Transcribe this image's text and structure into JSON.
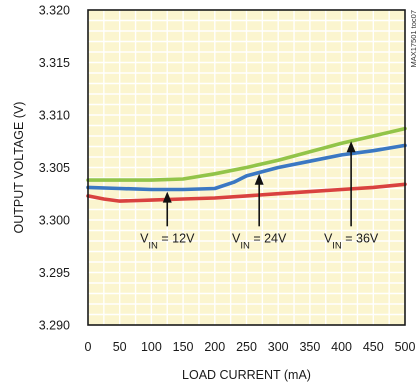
{
  "chart_data": {
    "type": "line",
    "xlabel": "LOAD CURRENT (mA)",
    "ylabel": "OUTPUT VOLTAGE (V)",
    "side_note": "MAX17501 toc07",
    "xlim": [
      0,
      500
    ],
    "ylim": [
      3.29,
      3.32
    ],
    "x_ticks": [
      "0",
      "50",
      "100",
      "150",
      "200",
      "250",
      "300",
      "350",
      "400",
      "450",
      "500"
    ],
    "y_ticks": [
      "3.320",
      "3.315",
      "3.310",
      "3.305",
      "3.300",
      "3.295",
      "3.290"
    ],
    "grid": true,
    "colors": {
      "plot_background": "#fbf5cf",
      "grid": "#ffffff",
      "axis": "#1a1a1a"
    },
    "series": [
      {
        "color": "#d9423f",
        "x": [
          0,
          25,
          50,
          100,
          150,
          200,
          250,
          300,
          350,
          400,
          450,
          500
        ],
        "y": [
          3.3023,
          3.302,
          3.3018,
          3.3019,
          3.302,
          3.3021,
          3.3023,
          3.3025,
          3.3027,
          3.3029,
          3.3031,
          3.3034
        ]
      },
      {
        "color": "#3b78c3",
        "x": [
          0,
          50,
          100,
          150,
          200,
          230,
          250,
          300,
          350,
          400,
          450,
          500
        ],
        "y": [
          3.3031,
          3.303,
          3.3029,
          3.3029,
          3.303,
          3.3036,
          3.3042,
          3.305,
          3.3056,
          3.3062,
          3.3066,
          3.3071
        ]
      },
      {
        "color": "#92c449",
        "x": [
          0,
          50,
          100,
          150,
          200,
          250,
          300,
          350,
          400,
          450,
          500
        ],
        "y": [
          3.3038,
          3.3038,
          3.3038,
          3.3039,
          3.3044,
          3.305,
          3.3057,
          3.3065,
          3.3073,
          3.308,
          3.3087
        ]
      }
    ],
    "annotations": [
      {
        "prefix": "V",
        "sub": "IN",
        "suffix": " = 12V",
        "arrow_x": 125,
        "arrow_tip_y": 3.3027,
        "arrow_tail_y": 3.2994
      },
      {
        "prefix": "V",
        "sub": "IN",
        "suffix": " = 24V",
        "arrow_x": 270,
        "arrow_tip_y": 3.3044,
        "arrow_tail_y": 3.2994
      },
      {
        "prefix": "V",
        "sub": "IN",
        "suffix": " = 36V",
        "arrow_x": 415,
        "arrow_tip_y": 3.3075,
        "arrow_tail_y": 3.2994
      }
    ]
  }
}
